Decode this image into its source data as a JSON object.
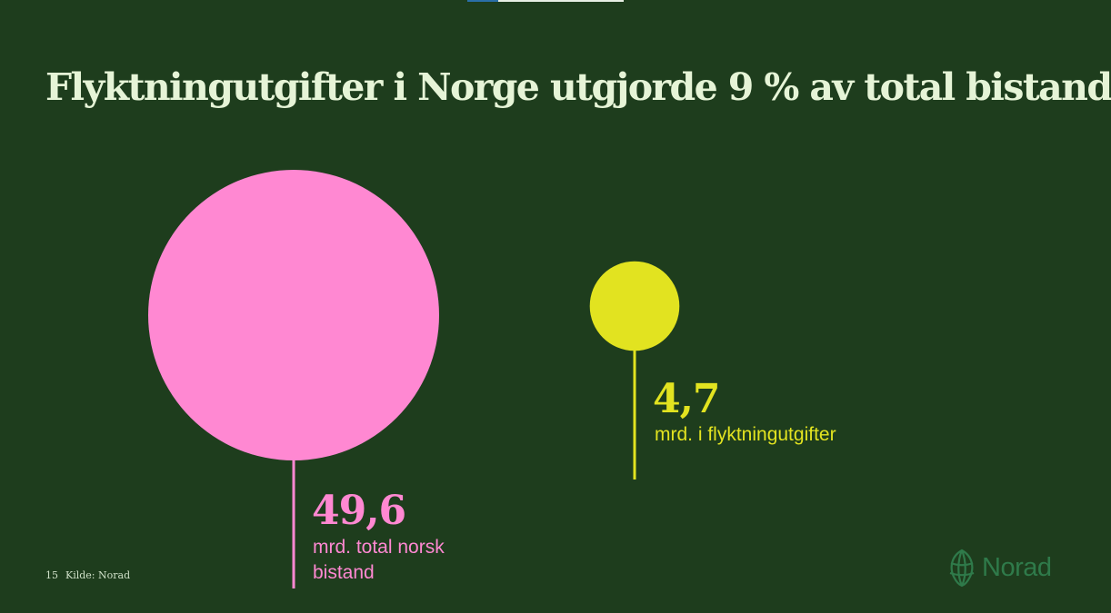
{
  "title": "Flyktningutgifter i Norge utgjorde 9 % av total bistand",
  "chart_data": {
    "type": "bubble",
    "title": "Flyktningutgifter i Norge utgjorde 9 % av total bistand",
    "unit": "mrd.",
    "items": [
      {
        "value": 49.6,
        "value_label": "49,6",
        "caption_lines": [
          "mrd. total norsk",
          "bistand"
        ],
        "color": "#ff88d2"
      },
      {
        "value": 4.7,
        "value_label": "4,7",
        "caption_lines": [
          "mrd. i flyktningutgifter"
        ],
        "color": "#e2e320"
      }
    ]
  },
  "footer": {
    "page_number": "15",
    "source": "Kilde: Norad"
  },
  "logo": {
    "text": "Norad",
    "icon": "globe-leaf-icon"
  },
  "colors": {
    "background": "#1e3d1d",
    "title": "#e6f4d7",
    "logo": "#2f7a4a"
  }
}
